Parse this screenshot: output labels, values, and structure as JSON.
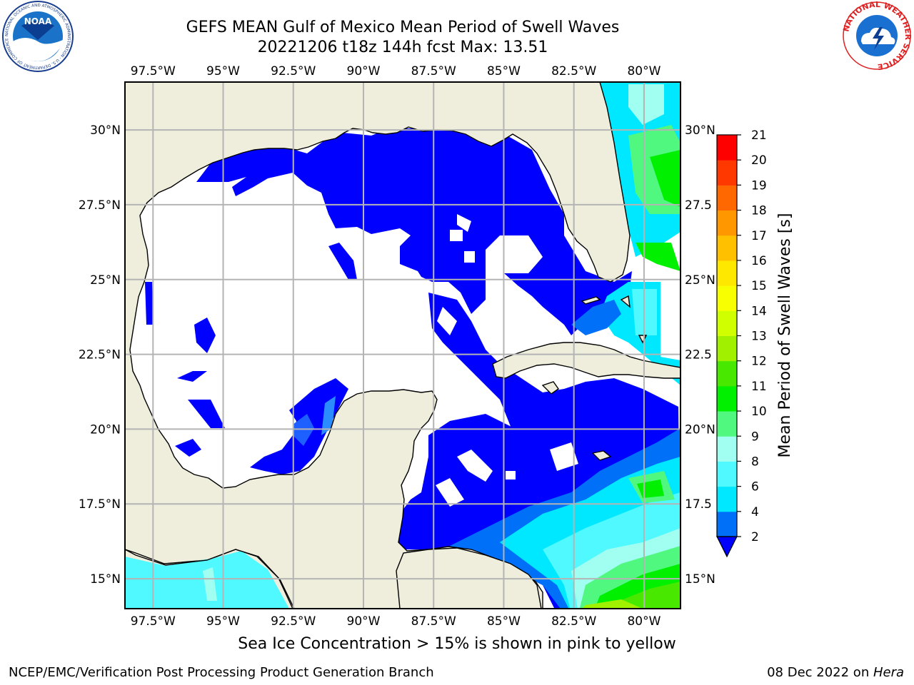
{
  "title": {
    "line1": "GEFS MEAN Gulf of Mexico Mean Period of Swell Waves",
    "line2": "20221206 t18z 144h fcst   Max: 13.51"
  },
  "map": {
    "lon_range": [
      -98.5,
      -78.7
    ],
    "lat_range": [
      14.0,
      31.6
    ],
    "lon_ticks": [
      "97.5°W",
      "95°W",
      "92.5°W",
      "90°W",
      "87.5°W",
      "85°W",
      "82.5°W",
      "80°W"
    ],
    "lat_ticks_left": [
      "30°N",
      "27.5°N",
      "25°N",
      "22.5°N",
      "20°N",
      "17.5°N",
      "15°N"
    ],
    "lat_ticks_right": [
      "30°N",
      "27.5",
      "25°N",
      "22.5",
      "20°N",
      "17.5",
      "15°N"
    ],
    "land_color": "#efeddc",
    "grid": true
  },
  "colorbar": {
    "label": "Mean Period of Swell Waves [s]",
    "ticks": [
      "2",
      "4",
      "6",
      "8",
      "9",
      "10",
      "11",
      "12",
      "13",
      "14",
      "15",
      "16",
      "17",
      "18",
      "19",
      "20",
      "21"
    ],
    "colors": [
      "#0070f8",
      "#00e8ff",
      "#50f8ff",
      "#a0fff0",
      "#50f880",
      "#00f000",
      "#48e800",
      "#a0f000",
      "#d0ff00",
      "#f8ff00",
      "#ffe800",
      "#ffc000",
      "#ff9800",
      "#ff6800",
      "#ff3800",
      "#ff0000"
    ],
    "under_color": "#0000ff"
  },
  "logos": {
    "noaa_text": "NOAA",
    "noaa_ring": "NATIONAL OCEANIC AND ATMOSPHERIC ADMINISTRATION · U.S. DEPARTMENT OF COMMERCE",
    "nws_ring": "NATIONAL WEATHER SERVICE"
  },
  "note": "Sea Ice Concentration > 15% is shown in pink to yellow",
  "footer": {
    "left": "NCEP/EMC/Verification Post Processing Product Generation Branch",
    "right_date": "08 Dec 2022 on ",
    "right_host": "Hera"
  }
}
